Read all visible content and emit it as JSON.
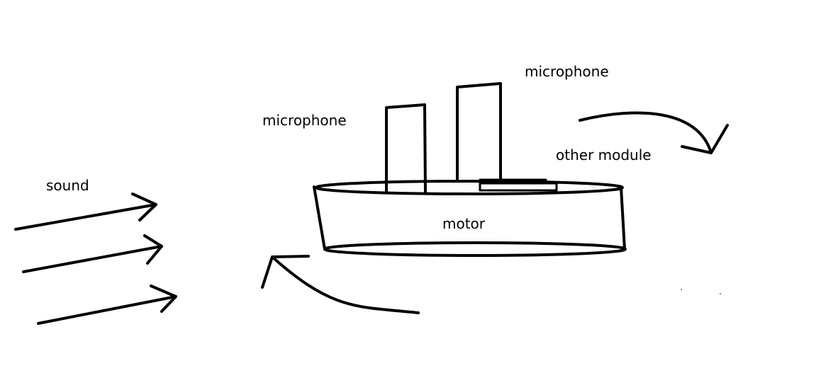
{
  "diagram": {
    "labels": {
      "sound": "sound",
      "microphone_left": "microphone",
      "microphone_right": "microphone",
      "other_module": "other module",
      "motor": "motor"
    },
    "stroke_color": "#000000",
    "background_color": "#ffffff"
  }
}
